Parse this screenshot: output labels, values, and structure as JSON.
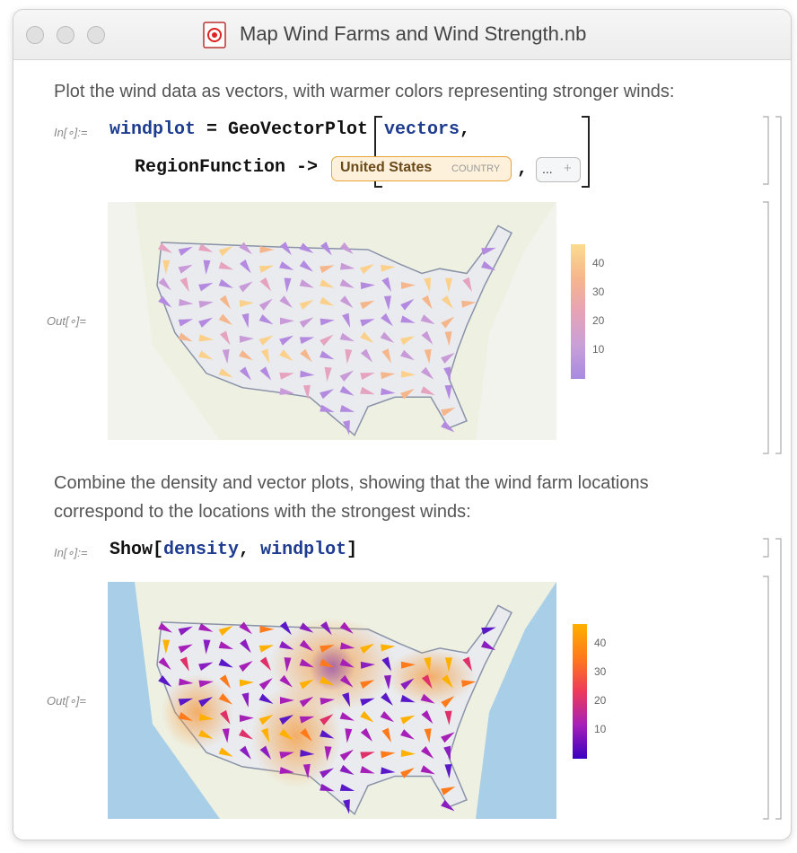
{
  "window": {
    "title": "Map Wind Farms and Wind Strength.nb"
  },
  "cells": {
    "text_1": "Plot the wind data as vectors, with warmer colors representing stronger winds:",
    "input_1": {
      "label": "In[∘]:=",
      "line_1": [
        "windplot",
        " = ",
        "GeoVectorPlot",
        "vectors",
        ","
      ],
      "line_2": [
        "RegionFunction",
        " -> "
      ],
      "entity": {
        "name": "United States",
        "kind": "COUNTRY"
      },
      "comma": ",",
      "more": "...",
      "plus": "+"
    },
    "output_1": {
      "label": "Out[∘]=",
      "legend_ticks": [
        40,
        30,
        20,
        10
      ]
    },
    "text_2": "Combine the density and vector plots, showing that the wind farm locations correspond to the locations with the strongest winds:",
    "input_2": {
      "label": "In[∘]:=",
      "tokens": [
        "Show",
        "[",
        "density",
        ", ",
        "windplot",
        "]"
      ]
    },
    "output_2": {
      "label": "Out[∘]=",
      "legend_ticks": [
        40,
        30,
        20,
        10
      ]
    }
  }
}
